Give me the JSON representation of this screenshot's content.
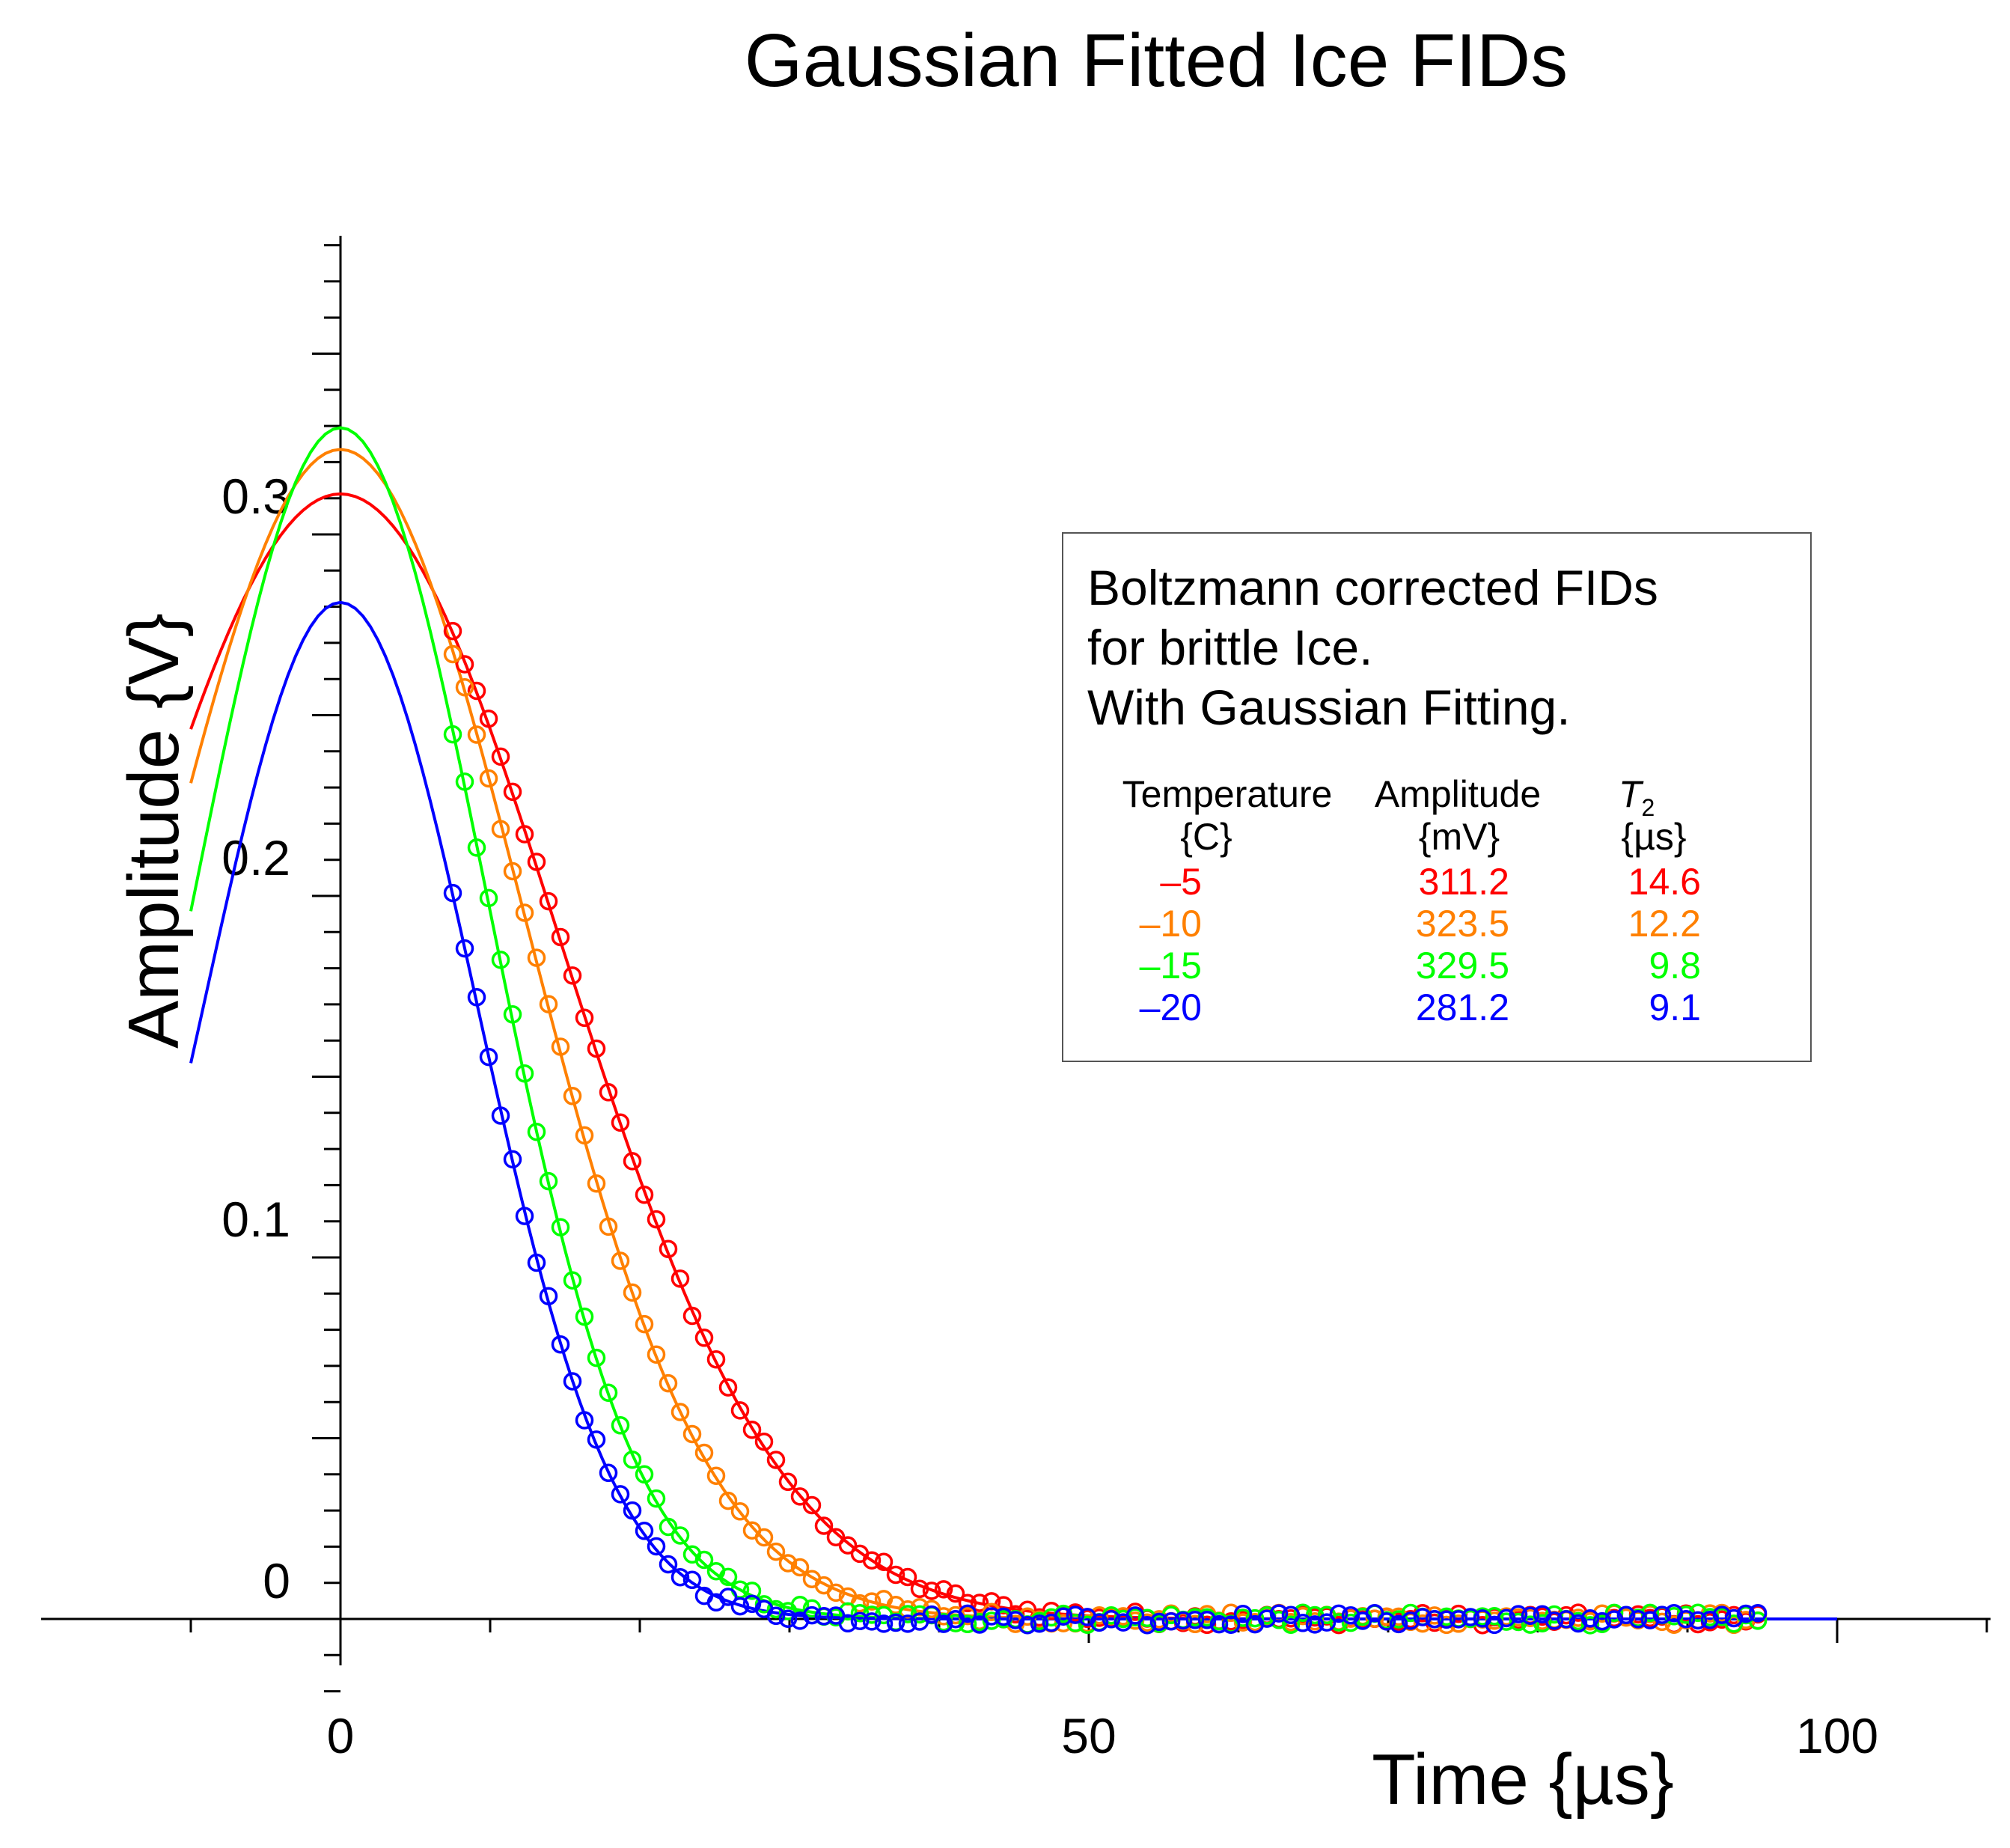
{
  "chart_data": {
    "type": "line",
    "title": "Gaussian Fitted Ice FIDs",
    "xlabel": "Time {µs}",
    "ylabel": "Amplitude {V}",
    "xlim": [
      -20,
      110
    ],
    "ylim": [
      -0.022,
      0.385
    ],
    "x_ticks": [
      {
        "value": 0,
        "label": "0"
      },
      {
        "value": 50,
        "label": "50"
      },
      {
        "value": 100,
        "label": "100"
      }
    ],
    "y_ticks": [
      {
        "value": 0,
        "label": "0"
      },
      {
        "value": 0.1,
        "label": "0.1"
      },
      {
        "value": 0.2,
        "label": "0.2"
      },
      {
        "value": 0.3,
        "label": "0.3"
      }
    ],
    "grid": false,
    "fit_x_range": [
      -10,
      100
    ],
    "data_x_range": [
      7.5,
      95
    ],
    "series": [
      {
        "temperature": "–5",
        "name": "–5 C",
        "color": "#ff0000",
        "amplitude_V": 0.3112,
        "T2_us": 14.6,
        "amplitude_label": "311.2",
        "T2_label": "14.6"
      },
      {
        "temperature": "–10",
        "name": "–10 C",
        "color": "#ff8000",
        "amplitude_V": 0.3235,
        "T2_us": 12.2,
        "amplitude_label": "323.5",
        "T2_label": "12.2"
      },
      {
        "temperature": "–15",
        "name": "–15 C",
        "color": "#00ff00",
        "amplitude_V": 0.3295,
        "T2_us": 9.8,
        "amplitude_label": "329.5",
        "T2_label": "9.8"
      },
      {
        "temperature": "–20",
        "name": "–20 C",
        "color": "#0000ff",
        "amplitude_V": 0.2812,
        "T2_us": 9.1,
        "amplitude_label": "281.2",
        "T2_label": "9.1"
      }
    ],
    "legend": {
      "placement": "right",
      "heading": [
        "Boltzmann corrected FIDs",
        "for brittle Ice.",
        "With Gaussian Fitting."
      ],
      "columns": [
        {
          "top": "Temperature",
          "bottom": "{C}"
        },
        {
          "top": "Amplitude",
          "bottom": "{mV}"
        },
        {
          "top": "T",
          "sub": "2",
          "bottom": "{µs}"
        }
      ]
    }
  }
}
